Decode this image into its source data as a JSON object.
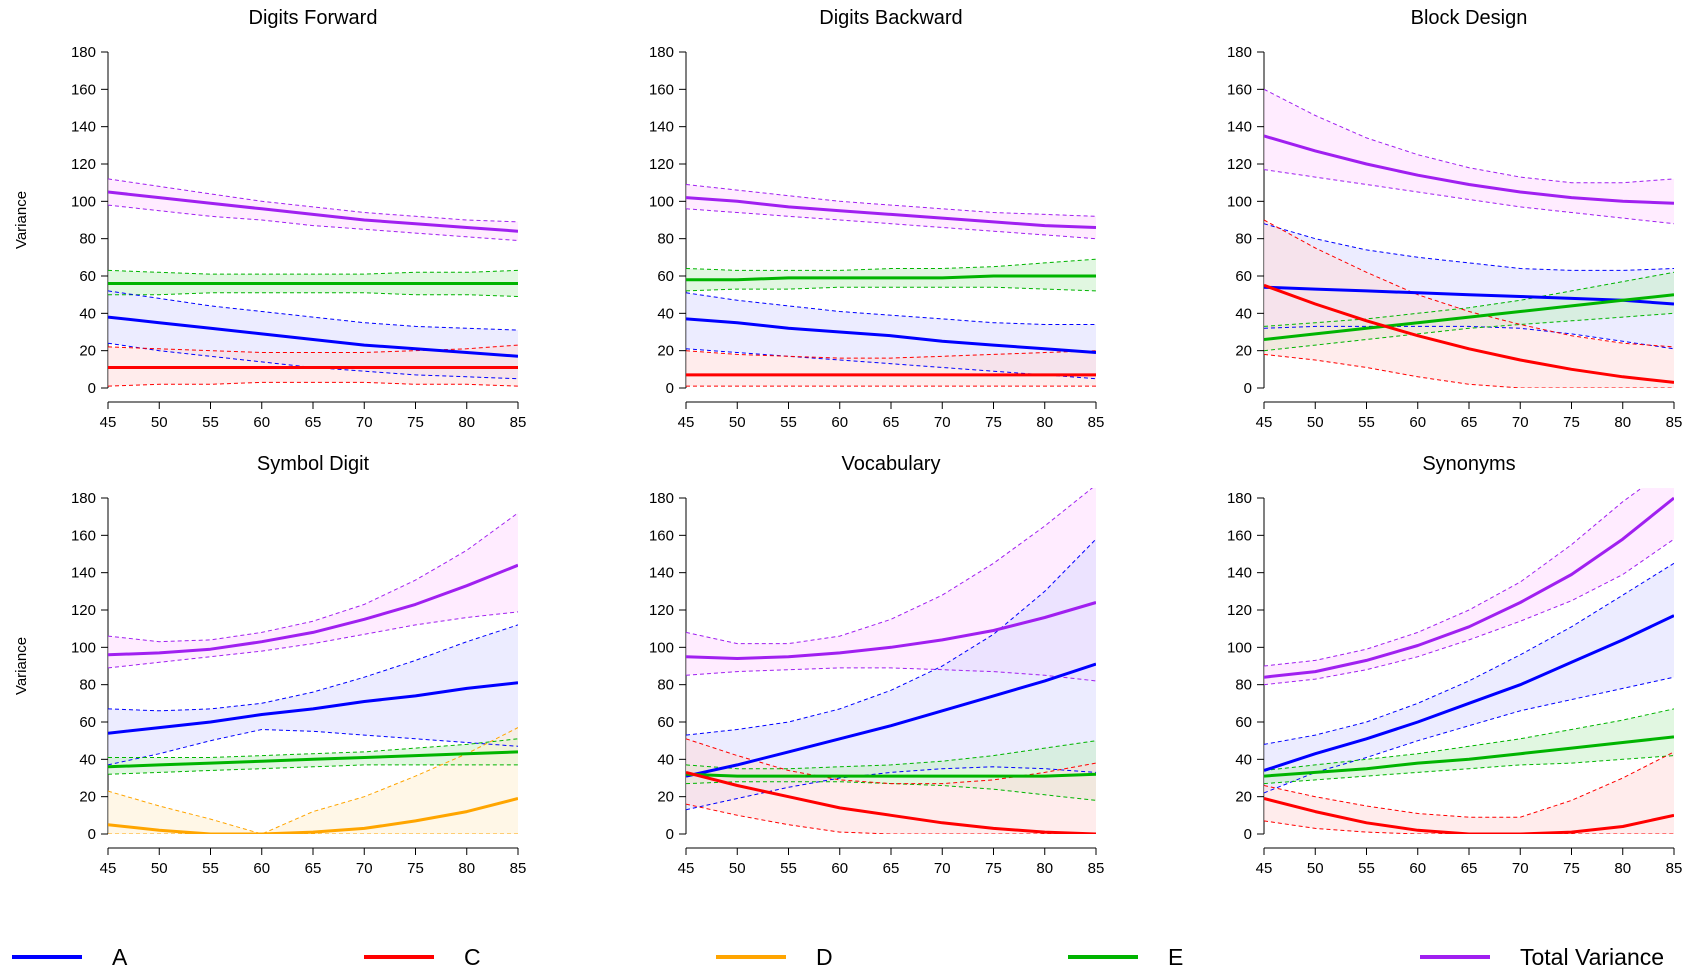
{
  "chart_data": {
    "type": "line",
    "x_ticks": [
      45,
      50,
      55,
      60,
      65,
      70,
      75,
      80,
      85
    ],
    "y_ticks": [
      0,
      20,
      40,
      60,
      80,
      100,
      120,
      140,
      160,
      180
    ],
    "xlim": [
      45,
      85
    ],
    "ylim": [
      0,
      180
    ],
    "ylabel": "Variance",
    "grid": false,
    "legend_position": "bottom",
    "colors": {
      "A": {
        "line": "#0000ff",
        "fill": "#dcdcff"
      },
      "C": {
        "line": "#ff0000",
        "fill": "#ffdcdc"
      },
      "D": {
        "line": "#ffa500",
        "fill": "#fff0d4"
      },
      "E": {
        "line": "#00b400",
        "fill": "#c8f0c8"
      },
      "Total Variance": {
        "line": "#a020f0",
        "fill": "#ffdcff"
      }
    },
    "legend": [
      "A",
      "C",
      "D",
      "E",
      "Total Variance"
    ],
    "panels": [
      {
        "title": "Digits Forward",
        "x": [
          45,
          50,
          55,
          60,
          65,
          70,
          75,
          80,
          85
        ],
        "series": [
          {
            "name": "Total Variance",
            "values": [
              105,
              102,
              99,
              96,
              93,
              90,
              88,
              86,
              84
            ],
            "lower": [
              98,
              95,
              92,
              90,
              87,
              85,
              83,
              81,
              79
            ],
            "upper": [
              112,
              108,
              104,
              100,
              97,
              94,
              92,
              90,
              89
            ]
          },
          {
            "name": "E",
            "values": [
              56,
              56,
              56,
              56,
              56,
              56,
              56,
              56,
              56
            ],
            "lower": [
              50,
              50,
              51,
              51,
              51,
              51,
              50,
              50,
              49
            ],
            "upper": [
              63,
              62,
              61,
              61,
              61,
              61,
              62,
              62,
              63
            ]
          },
          {
            "name": "A",
            "values": [
              38,
              35,
              32,
              29,
              26,
              23,
              21,
              19,
              17
            ],
            "lower": [
              24,
              20,
              17,
              14,
              11,
              9,
              7,
              6,
              5
            ],
            "upper": [
              52,
              48,
              44,
              41,
              38,
              35,
              33,
              32,
              31
            ]
          },
          {
            "name": "C",
            "values": [
              11,
              11,
              11,
              11,
              11,
              11,
              11,
              11,
              11
            ],
            "lower": [
              1,
              2,
              2,
              3,
              3,
              3,
              2,
              2,
              1
            ],
            "upper": [
              22,
              21,
              20,
              19,
              19,
              19,
              20,
              21,
              23
            ]
          }
        ]
      },
      {
        "title": "Digits Backward",
        "x": [
          45,
          50,
          55,
          60,
          65,
          70,
          75,
          80,
          85
        ],
        "series": [
          {
            "name": "Total Variance",
            "values": [
              102,
              100,
              97,
              95,
              93,
              91,
              89,
              87,
              86
            ],
            "lower": [
              96,
              94,
              92,
              90,
              88,
              86,
              84,
              82,
              80
            ],
            "upper": [
              109,
              106,
              103,
              100,
              98,
              96,
              94,
              93,
              92
            ]
          },
          {
            "name": "E",
            "values": [
              58,
              58,
              59,
              59,
              59,
              59,
              60,
              60,
              60
            ],
            "lower": [
              52,
              53,
              53,
              54,
              54,
              54,
              54,
              53,
              52
            ],
            "upper": [
              64,
              63,
              63,
              63,
              64,
              64,
              65,
              67,
              69
            ]
          },
          {
            "name": "A",
            "values": [
              37,
              35,
              32,
              30,
              28,
              25,
              23,
              21,
              19
            ],
            "lower": [
              21,
              19,
              17,
              15,
              13,
              11,
              9,
              7,
              5
            ],
            "upper": [
              51,
              47,
              44,
              41,
              39,
              37,
              35,
              34,
              34
            ]
          },
          {
            "name": "C",
            "values": [
              7,
              7,
              7,
              7,
              7,
              7,
              7,
              7,
              7
            ],
            "lower": [
              1,
              1,
              1,
              1,
              1,
              1,
              1,
              1,
              1
            ],
            "upper": [
              20,
              18,
              17,
              16,
              16,
              17,
              18,
              19,
              20
            ]
          }
        ]
      },
      {
        "title": "Block Design",
        "x": [
          45,
          50,
          55,
          60,
          65,
          70,
          75,
          80,
          85
        ],
        "series": [
          {
            "name": "Total Variance",
            "values": [
              135,
              127,
              120,
              114,
              109,
              105,
              102,
              100,
              99
            ],
            "lower": [
              117,
              113,
              109,
              105,
              101,
              97,
              94,
              91,
              88
            ],
            "upper": [
              160,
              146,
              134,
              125,
              118,
              113,
              110,
              110,
              112
            ]
          },
          {
            "name": "A",
            "values": [
              54,
              53,
              52,
              51,
              50,
              49,
              48,
              47,
              45
            ],
            "lower": [
              32,
              33,
              33,
              33,
              33,
              32,
              29,
              25,
              21
            ],
            "upper": [
              88,
              80,
              74,
              70,
              67,
              64,
              63,
              63,
              64
            ]
          },
          {
            "name": "E",
            "values": [
              26,
              29,
              32,
              35,
              38,
              41,
              44,
              47,
              50
            ],
            "lower": [
              20,
              23,
              26,
              29,
              32,
              34,
              36,
              38,
              40
            ],
            "upper": [
              33,
              35,
              37,
              40,
              43,
              47,
              52,
              57,
              62
            ]
          },
          {
            "name": "C",
            "values": [
              55,
              45,
              36,
              28,
              21,
              15,
              10,
              6,
              3
            ],
            "lower": [
              18,
              15,
              11,
              6,
              2,
              0,
              0,
              0,
              0
            ],
            "upper": [
              90,
              75,
              62,
              50,
              41,
              34,
              28,
              24,
              22
            ]
          }
        ]
      },
      {
        "title": "Symbol Digit",
        "x": [
          45,
          50,
          55,
          60,
          65,
          70,
          75,
          80,
          85
        ],
        "series": [
          {
            "name": "Total Variance",
            "values": [
              96,
              97,
              99,
              103,
              108,
              115,
              123,
              133,
              144
            ],
            "lower": [
              89,
              92,
              95,
              98,
              102,
              107,
              112,
              116,
              119
            ],
            "upper": [
              106,
              103,
              104,
              108,
              114,
              123,
              136,
              152,
              172
            ]
          },
          {
            "name": "A",
            "values": [
              54,
              57,
              60,
              64,
              67,
              71,
              74,
              78,
              81
            ],
            "lower": [
              37,
              43,
              50,
              56,
              55,
              53,
              51,
              49,
              47
            ],
            "upper": [
              67,
              66,
              67,
              70,
              76,
              84,
              93,
              103,
              112
            ]
          },
          {
            "name": "E",
            "values": [
              36,
              37,
              38,
              39,
              40,
              41,
              42,
              43,
              44
            ],
            "lower": [
              32,
              33,
              34,
              35,
              36,
              37,
              37,
              37,
              37
            ],
            "upper": [
              41,
              41,
              41,
              42,
              43,
              44,
              46,
              48,
              51
            ]
          },
          {
            "name": "D",
            "values": [
              5,
              2,
              0,
              0,
              1,
              3,
              7,
              12,
              19
            ],
            "lower": [
              0,
              0,
              0,
              0,
              0,
              0,
              0,
              0,
              0
            ],
            "upper": [
              23,
              15,
              8,
              0,
              12,
              20,
              31,
              43,
              57
            ]
          }
        ]
      },
      {
        "title": "Vocabulary",
        "x": [
          45,
          50,
          55,
          60,
          65,
          70,
          75,
          80,
          85
        ],
        "series": [
          {
            "name": "Total Variance",
            "values": [
              95,
              94,
              95,
              97,
              100,
              104,
              109,
              116,
              124
            ],
            "lower": [
              85,
              87,
              88,
              89,
              89,
              88,
              87,
              85,
              82
            ],
            "upper": [
              108,
              102,
              102,
              106,
              115,
              128,
              145,
              165,
              187
            ]
          },
          {
            "name": "A",
            "values": [
              31,
              37,
              44,
              51,
              58,
              66,
              74,
              82,
              91
            ],
            "lower": [
              13,
              19,
              25,
              30,
              33,
              35,
              36,
              35,
              33
            ],
            "upper": [
              53,
              56,
              60,
              67,
              77,
              90,
              107,
              130,
              158
            ]
          },
          {
            "name": "E",
            "values": [
              32,
              31,
              31,
              31,
              31,
              31,
              31,
              31,
              32
            ],
            "lower": [
              27,
              28,
              28,
              28,
              27,
              26,
              24,
              21,
              18
            ],
            "upper": [
              37,
              35,
              35,
              36,
              37,
              39,
              42,
              46,
              50
            ]
          },
          {
            "name": "C",
            "values": [
              33,
              26,
              20,
              14,
              10,
              6,
              3,
              1,
              0
            ],
            "lower": [
              16,
              10,
              5,
              1,
              0,
              0,
              0,
              0,
              0
            ],
            "upper": [
              51,
              42,
              34,
              29,
              27,
              27,
              29,
              33,
              38
            ]
          }
        ]
      },
      {
        "title": "Synonyms",
        "x": [
          45,
          50,
          55,
          60,
          65,
          70,
          75,
          80,
          85
        ],
        "series": [
          {
            "name": "Total Variance",
            "values": [
              84,
              87,
              93,
              101,
              111,
              124,
              139,
              158,
              180
            ],
            "lower": [
              80,
              83,
              88,
              95,
              104,
              114,
              125,
              139,
              158
            ],
            "upper": [
              90,
              93,
              99,
              108,
              120,
              135,
              155,
              178,
              198
            ]
          },
          {
            "name": "A",
            "values": [
              34,
              43,
              51,
              60,
              70,
              80,
              92,
              104,
              117
            ],
            "lower": [
              22,
              33,
              41,
              50,
              58,
              66,
              72,
              78,
              84
            ],
            "upper": [
              48,
              53,
              60,
              70,
              82,
              96,
              111,
              128,
              145
            ]
          },
          {
            "name": "E",
            "values": [
              31,
              33,
              35,
              38,
              40,
              43,
              46,
              49,
              52
            ],
            "lower": [
              27,
              29,
              31,
              33,
              35,
              37,
              38,
              40,
              42
            ],
            "upper": [
              34,
              37,
              40,
              43,
              47,
              51,
              56,
              61,
              67
            ]
          },
          {
            "name": "C",
            "values": [
              19,
              12,
              6,
              2,
              0,
              0,
              1,
              4,
              10
            ],
            "lower": [
              7,
              3,
              1,
              0,
              0,
              0,
              0,
              0,
              0
            ],
            "upper": [
              26,
              20,
              15,
              11,
              9,
              9,
              18,
              30,
              44
            ]
          }
        ]
      }
    ]
  }
}
